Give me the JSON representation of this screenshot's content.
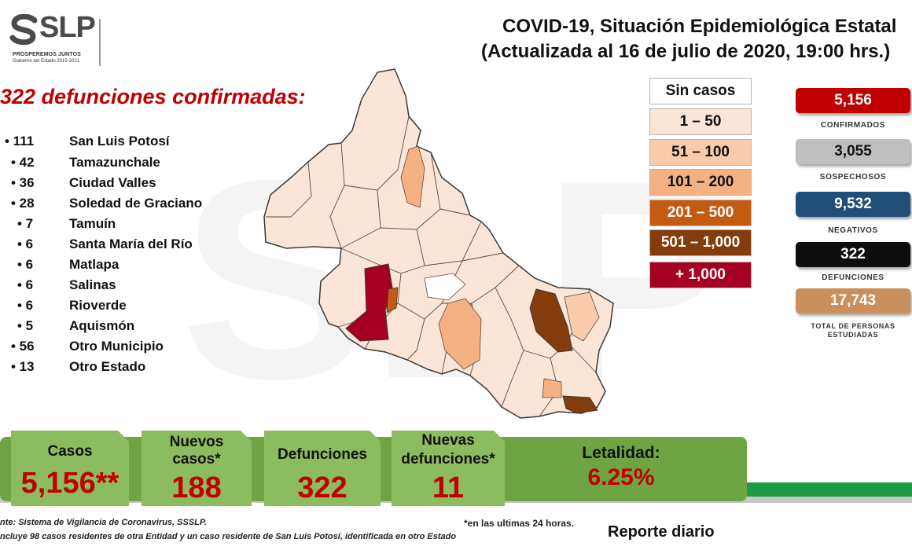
{
  "logo": {
    "brand": "SLP",
    "tagline": "PROSPEREMOS JUNTOS",
    "government": "Gobierno del Estado 2015-2021"
  },
  "header": {
    "title_line1": "COVID-19, Situación Epidemiológica Estatal",
    "title_line2": "(Actualizada al 16 de julio de 2020, 19:00 hrs.)"
  },
  "defunciones": {
    "heading": "322 defunciones confirmadas:",
    "items": [
      {
        "num": "• 111",
        "name": "San Luis Potosí"
      },
      {
        "num": "• 42",
        "name": "Tamazunchale"
      },
      {
        "num": "• 36",
        "name": "Ciudad Valles"
      },
      {
        "num": "• 28",
        "name": "Soledad de Graciano"
      },
      {
        "num": "• 7",
        "name": "Tamuín"
      },
      {
        "num": "• 6",
        "name": "Santa María del Río"
      },
      {
        "num": "• 6",
        "name": "Matlapa"
      },
      {
        "num": "• 6",
        "name": "Salinas"
      },
      {
        "num": "• 6",
        "name": "Rioverde"
      },
      {
        "num": "• 5",
        "name": "Aquismón"
      },
      {
        "num": "• 56",
        "name": "Otro Municipio"
      },
      {
        "num": "• 13",
        "name": "Otro Estado"
      }
    ]
  },
  "legend": [
    {
      "label": "Sin casos",
      "bg": "#ffffff",
      "fg": "#111111"
    },
    {
      "label": "1 – 50",
      "bg": "#fbe5d6",
      "fg": "#111111"
    },
    {
      "label": "51 – 100",
      "bg": "#f8cbad",
      "fg": "#111111"
    },
    {
      "label": "101 – 200",
      "bg": "#f4b183",
      "fg": "#111111"
    },
    {
      "label": "201 – 500",
      "bg": "#c55a11",
      "fg": "#ffffff"
    },
    {
      "label": "501 – 1,000",
      "bg": "#843c0c",
      "fg": "#ffffff"
    },
    {
      "label": "+ 1,000",
      "bg": "#a50021",
      "fg": "#ffffff"
    }
  ],
  "stats": [
    {
      "value": "5,156",
      "label": "CONFIRMADOS",
      "bg": "#c00000",
      "fg": "#ffffff"
    },
    {
      "value": "3,055",
      "label": "SOSPECHOSOS",
      "bg": "#bfbfbf",
      "fg": "#111111"
    },
    {
      "value": "9,532",
      "label": "NEGATIVOS",
      "bg": "#1f4e79",
      "fg": "#ffffff"
    },
    {
      "value": "322",
      "label": "DEFUNCIONES",
      "bg": "#0d0d0d",
      "fg": "#ffffff"
    },
    {
      "value": "17,743",
      "label": "TOTAL DE PERSONAS ESTUDIADAS",
      "bg": "#c9905d",
      "fg": "#ffffff"
    }
  ],
  "summary": {
    "casos_label": "Casos",
    "casos_value": "5,156**",
    "nuevos_casos_label1": "Nuevos",
    "nuevos_casos_label2": "casos*",
    "nuevos_casos_value": "188",
    "defunciones_label": "Defunciones",
    "defunciones_value": "322",
    "nuevas_def_label1": "Nuevas",
    "nuevas_def_label2": "defunciones*",
    "nuevas_def_value": "11",
    "letalidad_label": "Letalidad:",
    "letalidad_value": "6.25%"
  },
  "footer": {
    "source": "nte: Sistema de Vigilancia  de Coronavirus, SSSLP.",
    "note": "ncluye 98 casos residentes de otra Entidad  y un caso residente de San Luis Potosí, identificada  en otro Estado",
    "last24": "*en las ultimas 24 horas.",
    "report": "Reporte diario"
  }
}
